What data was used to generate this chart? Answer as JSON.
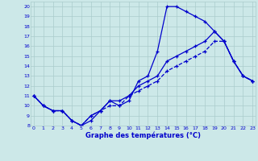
{
  "background_color": "#cce8e8",
  "grid_color": "#aacccc",
  "line_color": "#0000cc",
  "x_hours": [
    0,
    1,
    2,
    3,
    4,
    5,
    6,
    7,
    8,
    9,
    10,
    11,
    12,
    13,
    14,
    15,
    16,
    17,
    18,
    19,
    20,
    21,
    22,
    23
  ],
  "line1": [
    11,
    10,
    9.5,
    9.5,
    8.5,
    8,
    8.5,
    9.5,
    10.5,
    10,
    10.5,
    12.5,
    13,
    15.5,
    20,
    20,
    19.5,
    19,
    18.5,
    17.5,
    16.5,
    14.5,
    13,
    12.5
  ],
  "line2": [
    11,
    10,
    9.5,
    9.5,
    8.5,
    8,
    9,
    9.5,
    10,
    10,
    11,
    11.5,
    12,
    12.5,
    13.5,
    14,
    14.5,
    15,
    15.5,
    16.5,
    16.5,
    14.5,
    13,
    12.5
  ],
  "line3": [
    11,
    10,
    9.5,
    9.5,
    8.5,
    8,
    9,
    9.5,
    10.5,
    10.5,
    11,
    12,
    12.5,
    13,
    14.5,
    15,
    15.5,
    16,
    16.5,
    17.5,
    16.5,
    14.5,
    13,
    12.5
  ],
  "ylim": [
    8,
    20.5
  ],
  "yticks": [
    8,
    9,
    10,
    11,
    12,
    13,
    14,
    15,
    16,
    17,
    18,
    19,
    20
  ],
  "xlabel": "Graphe des températures (°C)",
  "xlabel_bold": true
}
